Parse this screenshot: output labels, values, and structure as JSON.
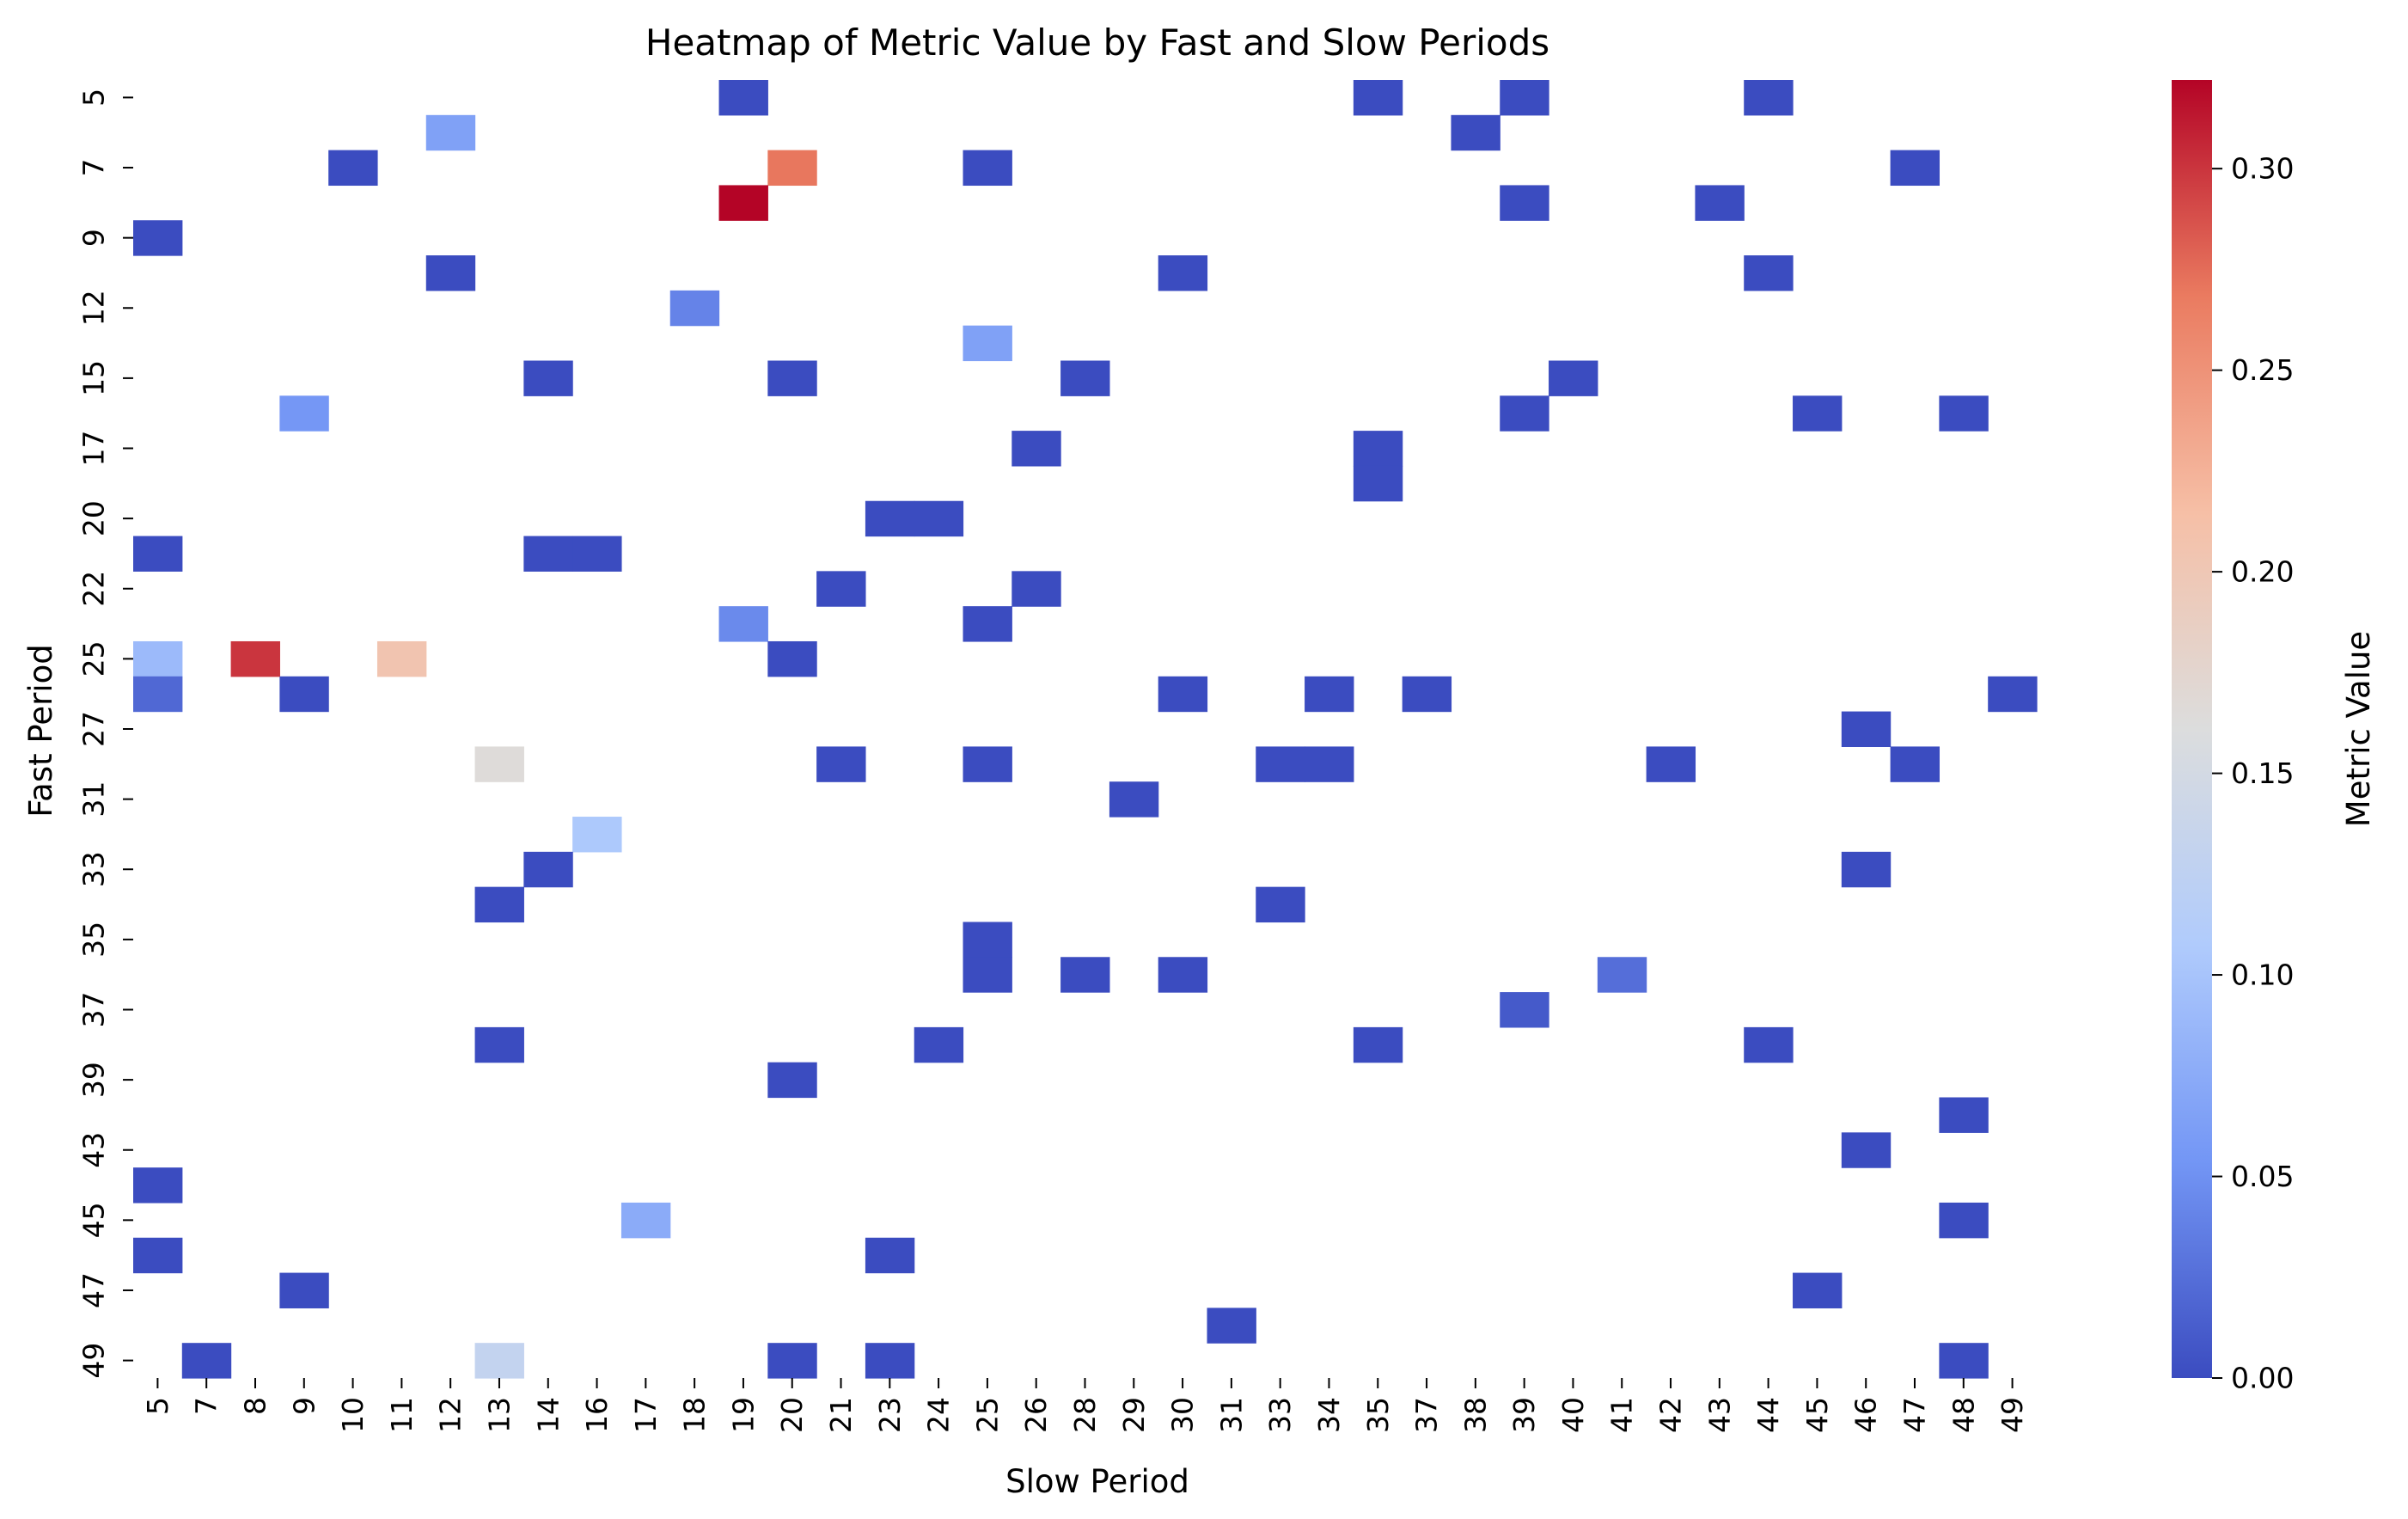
{
  "chart_data": {
    "type": "heatmap",
    "title": "Heatmap of Metric Value by Fast and Slow Periods",
    "xlabel": "Slow Period",
    "ylabel": "Fast Period",
    "colorbar_label": "Metric Value",
    "colormap": "coolwarm",
    "colormap_stops": [
      "#3b4cc0",
      "#7396f5",
      "#b0cbfc",
      "#dcdddd",
      "#f6bfa6",
      "#ea7b60",
      "#b40426"
    ],
    "value_range": [
      0.0,
      0.322
    ],
    "colorbar_ticks": [
      "0.00",
      "0.05",
      "0.10",
      "0.15",
      "0.20",
      "0.25",
      "0.30"
    ],
    "x_categories": [
      "5",
      "7",
      "8",
      "9",
      "10",
      "11",
      "12",
      "13",
      "14",
      "16",
      "17",
      "18",
      "19",
      "20",
      "21",
      "23",
      "24",
      "25",
      "26",
      "28",
      "29",
      "30",
      "31",
      "33",
      "34",
      "35",
      "37",
      "38",
      "39",
      "40",
      "41",
      "42",
      "43",
      "44",
      "45",
      "46",
      "47",
      "48",
      "49"
    ],
    "y_categories": [
      "5",
      "6",
      "7",
      "8",
      "9",
      "11",
      "12",
      "14",
      "15",
      "16",
      "17",
      "19",
      "20",
      "21",
      "22",
      "24",
      "25",
      "26",
      "27",
      "30",
      "31",
      "32",
      "33",
      "34",
      "35",
      "36",
      "37",
      "38",
      "39",
      "42",
      "43",
      "44",
      "45",
      "46",
      "47",
      "48",
      "49"
    ],
    "y_tick_labels_shown": [
      "5",
      "7",
      "9",
      "12",
      "15",
      "17",
      "20",
      "22",
      "25",
      "27",
      "31",
      "33",
      "35",
      "37",
      "39",
      "43",
      "45",
      "47",
      "49"
    ],
    "cells": [
      {
        "fast": "5",
        "slow": "19",
        "value": 0.0
      },
      {
        "fast": "5",
        "slow": "35",
        "value": 0.0
      },
      {
        "fast": "5",
        "slow": "39",
        "value": 0.0
      },
      {
        "fast": "5",
        "slow": "44",
        "value": 0.0
      },
      {
        "fast": "6",
        "slow": "12",
        "value": 0.065
      },
      {
        "fast": "6",
        "slow": "38",
        "value": 0.0
      },
      {
        "fast": "7",
        "slow": "10",
        "value": 0.0
      },
      {
        "fast": "7",
        "slow": "20",
        "value": 0.27
      },
      {
        "fast": "7",
        "slow": "25",
        "value": 0.0
      },
      {
        "fast": "7",
        "slow": "47",
        "value": 0.0
      },
      {
        "fast": "8",
        "slow": "19",
        "value": 0.322
      },
      {
        "fast": "8",
        "slow": "39",
        "value": 0.0
      },
      {
        "fast": "8",
        "slow": "43",
        "value": 0.0
      },
      {
        "fast": "9",
        "slow": "5",
        "value": 0.0
      },
      {
        "fast": "11",
        "slow": "12",
        "value": 0.0
      },
      {
        "fast": "11",
        "slow": "30",
        "value": 0.0
      },
      {
        "fast": "11",
        "slow": "44",
        "value": 0.0
      },
      {
        "fast": "12",
        "slow": "18",
        "value": 0.04
      },
      {
        "fast": "14",
        "slow": "25",
        "value": 0.065
      },
      {
        "fast": "15",
        "slow": "14",
        "value": 0.0
      },
      {
        "fast": "15",
        "slow": "20",
        "value": 0.0
      },
      {
        "fast": "15",
        "slow": "28",
        "value": 0.0
      },
      {
        "fast": "15",
        "slow": "40",
        "value": 0.0
      },
      {
        "fast": "16",
        "slow": "9",
        "value": 0.055
      },
      {
        "fast": "16",
        "slow": "39",
        "value": 0.0
      },
      {
        "fast": "16",
        "slow": "45",
        "value": 0.0
      },
      {
        "fast": "16",
        "slow": "48",
        "value": 0.0
      },
      {
        "fast": "17",
        "slow": "26",
        "value": 0.0
      },
      {
        "fast": "17",
        "slow": "35",
        "value": 0.0
      },
      {
        "fast": "19",
        "slow": "35",
        "value": 0.0
      },
      {
        "fast": "20",
        "slow": "23",
        "value": 0.0
      },
      {
        "fast": "20",
        "slow": "24",
        "value": 0.0
      },
      {
        "fast": "21",
        "slow": "5",
        "value": 0.0
      },
      {
        "fast": "21",
        "slow": "14",
        "value": 0.0
      },
      {
        "fast": "21",
        "slow": "16",
        "value": 0.0
      },
      {
        "fast": "22",
        "slow": "21",
        "value": 0.0
      },
      {
        "fast": "22",
        "slow": "26",
        "value": 0.0
      },
      {
        "fast": "24",
        "slow": "19",
        "value": 0.045
      },
      {
        "fast": "24",
        "slow": "25",
        "value": 0.0
      },
      {
        "fast": "25",
        "slow": "5",
        "value": 0.09
      },
      {
        "fast": "25",
        "slow": "8",
        "value": 0.3
      },
      {
        "fast": "25",
        "slow": "11",
        "value": 0.205
      },
      {
        "fast": "25",
        "slow": "20",
        "value": 0.0
      },
      {
        "fast": "26",
        "slow": "5",
        "value": 0.02
      },
      {
        "fast": "26",
        "slow": "9",
        "value": 0.0
      },
      {
        "fast": "26",
        "slow": "30",
        "value": 0.0
      },
      {
        "fast": "26",
        "slow": "34",
        "value": 0.0
      },
      {
        "fast": "26",
        "slow": "37",
        "value": 0.0
      },
      {
        "fast": "26",
        "slow": "49",
        "value": 0.0
      },
      {
        "fast": "27",
        "slow": "46",
        "value": 0.0
      },
      {
        "fast": "30",
        "slow": "13",
        "value": 0.165
      },
      {
        "fast": "30",
        "slow": "21",
        "value": 0.0
      },
      {
        "fast": "30",
        "slow": "25",
        "value": 0.0
      },
      {
        "fast": "30",
        "slow": "33",
        "value": 0.0
      },
      {
        "fast": "30",
        "slow": "34",
        "value": 0.0
      },
      {
        "fast": "30",
        "slow": "42",
        "value": 0.0
      },
      {
        "fast": "30",
        "slow": "47",
        "value": 0.0
      },
      {
        "fast": "31",
        "slow": "29",
        "value": 0.0
      },
      {
        "fast": "32",
        "slow": "16",
        "value": 0.105
      },
      {
        "fast": "33",
        "slow": "14",
        "value": 0.0
      },
      {
        "fast": "33",
        "slow": "46",
        "value": 0.0
      },
      {
        "fast": "34",
        "slow": "13",
        "value": 0.0
      },
      {
        "fast": "34",
        "slow": "33",
        "value": 0.0
      },
      {
        "fast": "35",
        "slow": "25",
        "value": 0.0
      },
      {
        "fast": "36",
        "slow": "25",
        "value": 0.0
      },
      {
        "fast": "36",
        "slow": "28",
        "value": 0.0
      },
      {
        "fast": "36",
        "slow": "30",
        "value": 0.0
      },
      {
        "fast": "36",
        "slow": "41",
        "value": 0.025
      },
      {
        "fast": "37",
        "slow": "39",
        "value": 0.01
      },
      {
        "fast": "38",
        "slow": "13",
        "value": 0.0
      },
      {
        "fast": "38",
        "slow": "24",
        "value": 0.0
      },
      {
        "fast": "38",
        "slow": "35",
        "value": 0.0
      },
      {
        "fast": "38",
        "slow": "44",
        "value": 0.0
      },
      {
        "fast": "39",
        "slow": "20",
        "value": 0.0
      },
      {
        "fast": "42",
        "slow": "48",
        "value": 0.0
      },
      {
        "fast": "43",
        "slow": "46",
        "value": 0.0
      },
      {
        "fast": "44",
        "slow": "5",
        "value": 0.0
      },
      {
        "fast": "45",
        "slow": "17",
        "value": 0.075
      },
      {
        "fast": "45",
        "slow": "48",
        "value": 0.0
      },
      {
        "fast": "46",
        "slow": "5",
        "value": 0.0
      },
      {
        "fast": "46",
        "slow": "23",
        "value": 0.0
      },
      {
        "fast": "47",
        "slow": "9",
        "value": 0.0
      },
      {
        "fast": "47",
        "slow": "45",
        "value": 0.0
      },
      {
        "fast": "48",
        "slow": "31",
        "value": 0.0
      },
      {
        "fast": "49",
        "slow": "7",
        "value": 0.0
      },
      {
        "fast": "49",
        "slow": "13",
        "value": 0.13
      },
      {
        "fast": "49",
        "slow": "20",
        "value": 0.0
      },
      {
        "fast": "49",
        "slow": "23",
        "value": 0.0
      },
      {
        "fast": "49",
        "slow": "48",
        "value": 0.0
      }
    ]
  }
}
